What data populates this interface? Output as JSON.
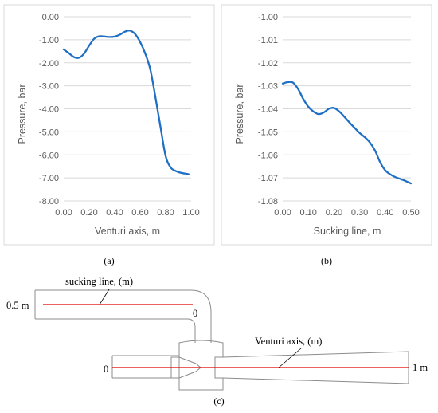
{
  "colors": {
    "series": "#1f6fc5",
    "grid": "#d9d9d9",
    "frame": "#d9d9d9",
    "pipe": "#8c8c8c",
    "axis_line": "#e00000"
  },
  "chart_data": [
    {
      "type": "line",
      "xlabel": "Venturi axis, m",
      "ylabel": "Pressure, bar",
      "xlim": [
        0,
        1
      ],
      "ylim": [
        -8,
        0
      ],
      "xticks": [
        0,
        0.2,
        0.4,
        0.6,
        0.8,
        1
      ],
      "yticks": [
        0,
        -1,
        -2,
        -3,
        -4,
        -5,
        -6,
        -7,
        -8
      ],
      "x_tick_labels": [
        "0.00",
        "0.20",
        "0.40",
        "0.60",
        "0.80",
        "1.00"
      ],
      "y_tick_labels": [
        "0.00",
        "-1.00",
        "-2.00",
        "-3.00",
        "-4.00",
        "-5.00",
        "-6.00",
        "-7.00",
        "-8.00"
      ],
      "grid": "horizontal",
      "caption": "(a)",
      "series": [
        {
          "x": [
            0,
            0.04,
            0.08,
            0.12,
            0.16,
            0.2,
            0.24,
            0.28,
            0.32,
            0.36,
            0.4,
            0.44,
            0.48,
            0.52,
            0.56,
            0.6,
            0.64,
            0.68,
            0.72,
            0.76,
            0.8,
            0.84,
            0.88,
            0.92,
            0.96,
            0.98
          ],
          "y": [
            -1.42,
            -1.58,
            -1.75,
            -1.78,
            -1.6,
            -1.25,
            -0.95,
            -0.85,
            -0.86,
            -0.88,
            -0.86,
            -0.78,
            -0.65,
            -0.6,
            -0.75,
            -1.1,
            -1.6,
            -2.3,
            -3.5,
            -4.8,
            -6.05,
            -6.55,
            -6.7,
            -6.78,
            -6.82,
            -6.84
          ]
        }
      ]
    },
    {
      "type": "line",
      "xlabel": "Sucking line, m",
      "ylabel": "Pressure, bar",
      "xlim": [
        0,
        0.5
      ],
      "ylim": [
        -1.08,
        -1
      ],
      "xticks": [
        0,
        0.1,
        0.2,
        0.3,
        0.4,
        0.5
      ],
      "yticks": [
        -1,
        -1.01,
        -1.02,
        -1.03,
        -1.04,
        -1.05,
        -1.06,
        -1.07,
        -1.08
      ],
      "x_tick_labels": [
        "0.00",
        "0.10",
        "0.20",
        "0.30",
        "0.40",
        "0.50"
      ],
      "y_tick_labels": [
        "-1.00",
        "-1.01",
        "-1.02",
        "-1.03",
        "-1.04",
        "-1.05",
        "-1.06",
        "-1.07",
        "-1.08"
      ],
      "grid": "horizontal",
      "caption": "(b)",
      "series": [
        {
          "x": [
            0,
            0.02,
            0.04,
            0.06,
            0.08,
            0.1,
            0.12,
            0.14,
            0.16,
            0.18,
            0.2,
            0.22,
            0.24,
            0.26,
            0.28,
            0.3,
            0.32,
            0.34,
            0.36,
            0.38,
            0.4,
            0.42,
            0.44,
            0.46,
            0.48,
            0.5
          ],
          "y": [
            -1.029,
            -1.0284,
            -1.0286,
            -1.0314,
            -1.0357,
            -1.0391,
            -1.0412,
            -1.0423,
            -1.0416,
            -1.04,
            -1.0396,
            -1.0411,
            -1.0434,
            -1.0459,
            -1.0482,
            -1.0505,
            -1.0523,
            -1.0546,
            -1.0581,
            -1.0632,
            -1.0667,
            -1.0685,
            -1.0697,
            -1.0705,
            -1.0714,
            -1.0724
          ]
        }
      ]
    }
  ],
  "diagram": {
    "sucking_label": "sucking line, (m)",
    "sucking_start_label": "0.5 m",
    "sucking_end_label": "0",
    "venturi_label": "Venturi axis, (m)",
    "venturi_start_label": "0",
    "venturi_end_label": "1 m",
    "caption": "(c)"
  }
}
